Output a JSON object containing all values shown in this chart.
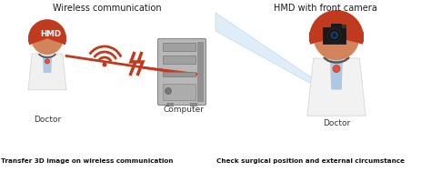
{
  "bg_color": "#ffffff",
  "title_left": "Wireless communication",
  "title_right": "HMD with front camera",
  "label_doctor_left": "Doctor",
  "label_computer": "Computer",
  "label_doctor_right": "Doctor",
  "caption_left": "Transfer 3D image on wireless communication",
  "caption_right": "Check surgical position and external circumstance",
  "hmd_color": "#bf3a1e",
  "hmd_text": "HMD",
  "skin_color": "#d4845a",
  "coat_color": "#f0f0f0",
  "wifi_color": "#bf3a1e",
  "lightning_color": "#bf3a1e",
  "arrow_fill": "#daeaf7",
  "arrow_edge": "#b8d4ea",
  "computer_body": "#a0a0a0",
  "computer_dark": "#787878",
  "line_color": "#bf3a1e"
}
